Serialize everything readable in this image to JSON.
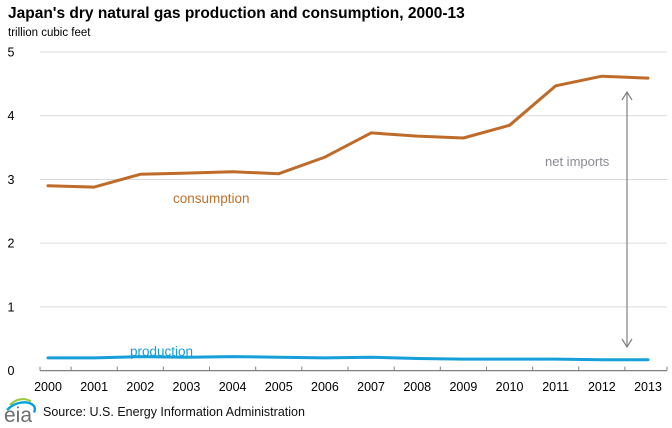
{
  "header": {
    "title": "Japan's dry natural gas production and consumption, 2000-13",
    "subtitle": "trillion cubic feet"
  },
  "footer": {
    "logo_text": "eia",
    "source": "Source: U.S. Energy Information Administration"
  },
  "colors": {
    "consumption": "#bf6b29",
    "production": "#169fd9",
    "consumption_label": "#c0712c",
    "production_label": "#169fd9",
    "annotation_text": "#8a8a94",
    "annotation_arrow": "#808080",
    "gridline": "#d9d9d9",
    "axis": "#808080",
    "tick_label": "#000000",
    "logo_gray": "#6e6e6e",
    "logo_green": "#9aca3c",
    "logo_blue": "#00a1de"
  },
  "chart_data": {
    "type": "line",
    "title": "Japan's dry natural gas production and consumption, 2000-13",
    "ylabel": "trillion cubic feet",
    "x": [
      2000,
      2001,
      2002,
      2003,
      2004,
      2005,
      2006,
      2007,
      2008,
      2009,
      2010,
      2011,
      2012,
      2013
    ],
    "series": [
      {
        "name": "consumption",
        "label": "consumption",
        "color_key": "consumption",
        "values": [
          2.9,
          2.88,
          3.08,
          3.1,
          3.12,
          3.09,
          3.35,
          3.73,
          3.68,
          3.65,
          3.85,
          4.47,
          4.62,
          4.59
        ]
      },
      {
        "name": "production",
        "label": "production",
        "color_key": "production",
        "values": [
          0.2,
          0.2,
          0.22,
          0.21,
          0.22,
          0.21,
          0.2,
          0.21,
          0.19,
          0.18,
          0.18,
          0.18,
          0.17,
          0.17
        ]
      }
    ],
    "annotations": {
      "net_imports_label": "net imports"
    },
    "ylim": [
      0,
      5
    ],
    "yticks": [
      0,
      1,
      2,
      3,
      4,
      5
    ],
    "grid": true,
    "legend": "inline-labels"
  }
}
